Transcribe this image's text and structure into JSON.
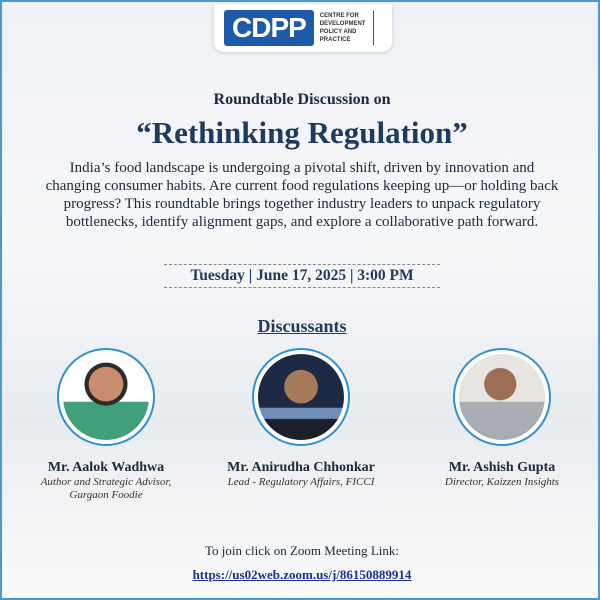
{
  "logo": {
    "mark": "CDPP",
    "lines": [
      "CENTRE FOR",
      "DEVELOPMENT",
      "POLICY AND",
      "PRACTICE"
    ]
  },
  "header": {
    "kicker": "Roundtable Discussion on",
    "title": "“Rethinking Regulation”"
  },
  "description": "India’s food landscape is undergoing a pivotal shift, driven by innovation and changing consumer habits. Are current food regulations keeping up—or holding back progress? This roundtable brings together industry leaders to unpack regulatory bottlenecks, identify alignment gaps, and explore a collaborative path forward.",
  "date": "Tuesday | June 17, 2025 | 3:00 PM",
  "discussants_heading": "Discussants",
  "speakers": [
    {
      "name": "Mr. Aalok Wadhwa",
      "role1": "Author and Strategic Advisor,",
      "role2": "Gurgaon Foodie"
    },
    {
      "name": "Mr. Anirudha Chhonkar",
      "role1": "Lead - Regulatory Affairs, FICCI",
      "role2": ""
    },
    {
      "name": "Mr. Ashish Gupta",
      "role1": "Director, Kaizzen Insights",
      "role2": ""
    }
  ],
  "footer": {
    "join": "To join click on Zoom Meeting Link:",
    "link": "https://us02web.zoom.us/j/86150889914"
  },
  "colors": {
    "brand": "#1e5aa8",
    "border": "#4a9ad8",
    "title": "#1f3a5c"
  }
}
